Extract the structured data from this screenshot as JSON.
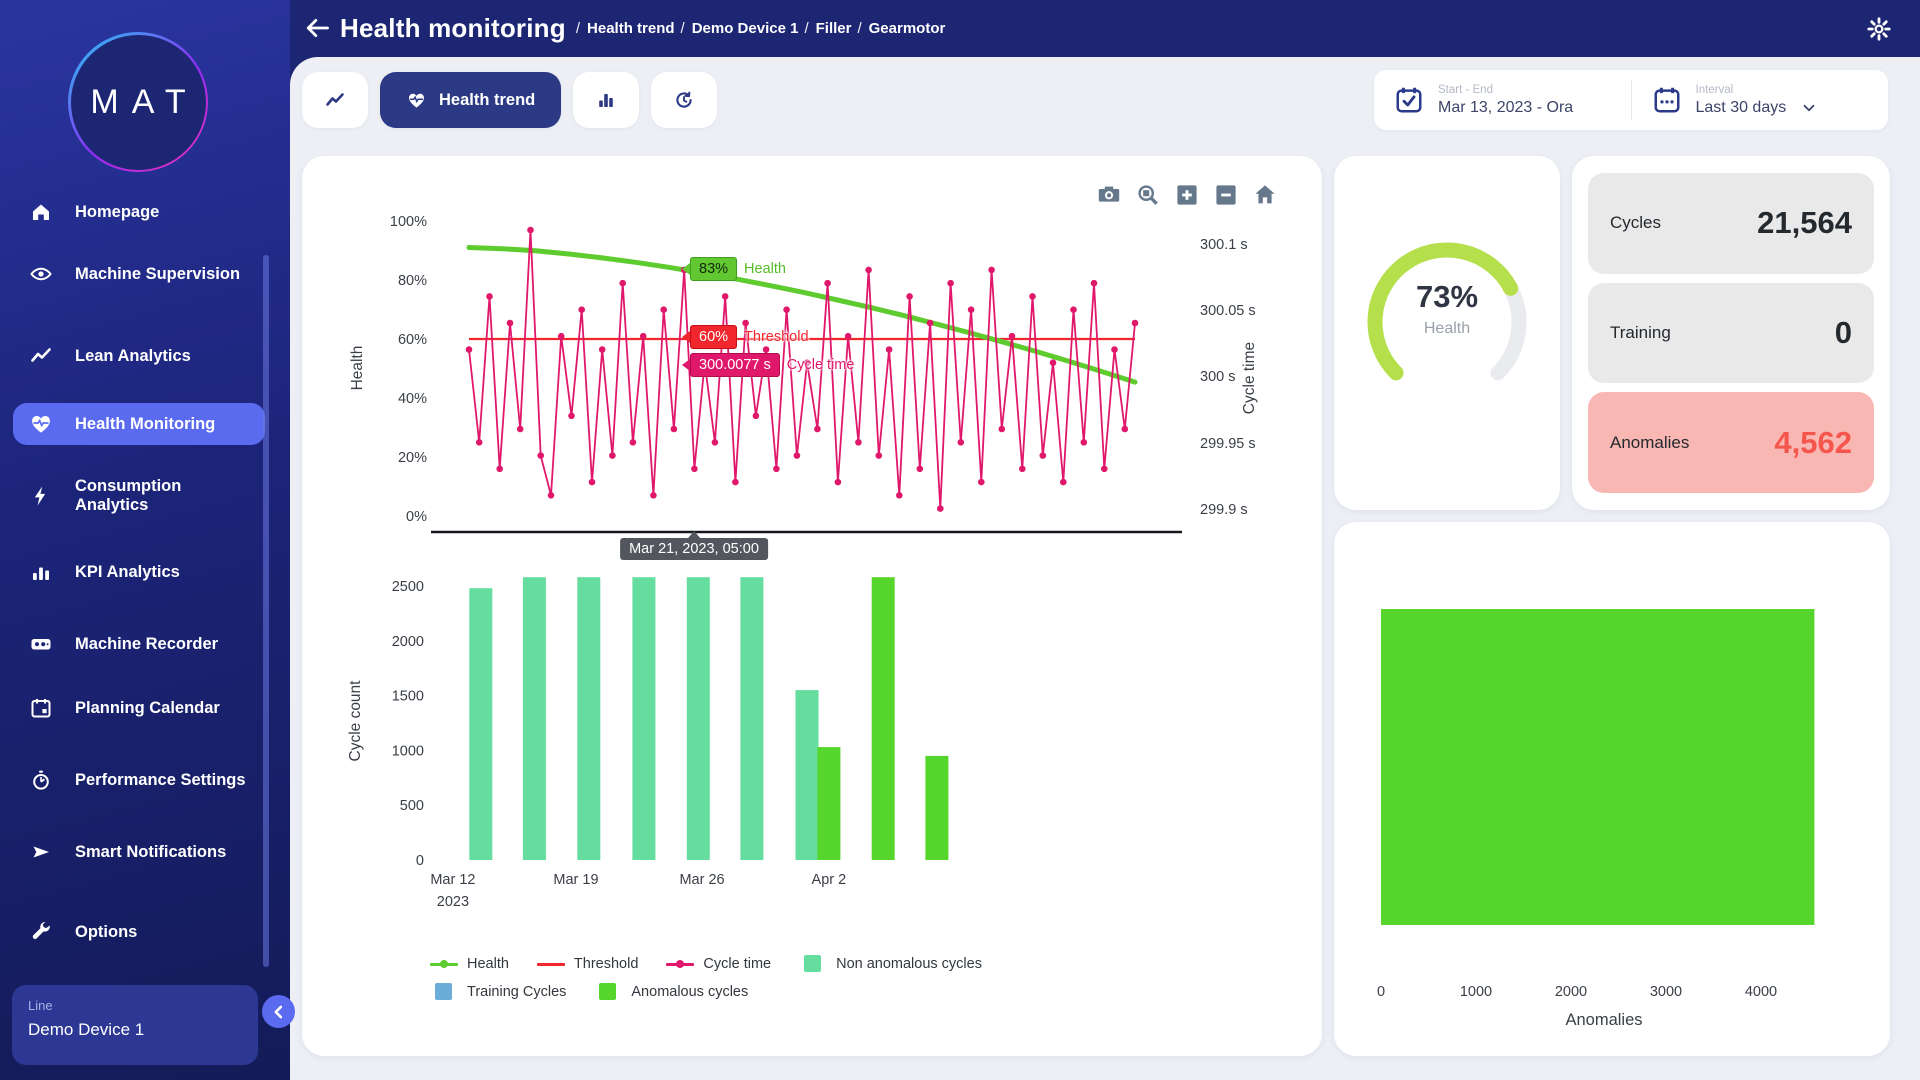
{
  "header": {
    "title": "Health monitoring",
    "breadcrumbs": [
      "Health trend",
      "Demo Device 1",
      "Filler",
      "Gearmotor"
    ]
  },
  "sidebar": {
    "logo": "MAT",
    "items": [
      {
        "label": "Homepage",
        "icon": "home-icon",
        "active": false
      },
      {
        "label": "Machine Supervision",
        "icon": "eye-icon",
        "active": false
      },
      {
        "label": "Lean Analytics",
        "icon": "trend-icon",
        "active": false
      },
      {
        "label": "Health Monitoring",
        "icon": "heart-icon",
        "active": true
      },
      {
        "label": "Consumption Analytics",
        "icon": "bolt-icon",
        "active": false
      },
      {
        "label": "KPI Analytics",
        "icon": "bar-chart-icon",
        "active": false
      },
      {
        "label": "Machine Recorder",
        "icon": "recorder-icon",
        "active": false
      },
      {
        "label": "Planning Calendar",
        "icon": "calendar-icon",
        "active": false
      },
      {
        "label": "Performance Settings",
        "icon": "stopwatch-icon",
        "active": false
      },
      {
        "label": "Smart Notifications",
        "icon": "send-icon",
        "active": false
      },
      {
        "label": "Options",
        "icon": "wrench-icon",
        "active": false
      }
    ],
    "device": {
      "label": "Line",
      "name": "Demo Device 1"
    }
  },
  "toolbar": {
    "tabs": {
      "active_label": "Health trend"
    },
    "date_range": {
      "label": "Start - End",
      "value": "Mar 13, 2023 - Ora"
    },
    "interval": {
      "label": "Interval",
      "value": "Last 30 days"
    },
    "modebar_icons": [
      "camera",
      "zoom-box",
      "zoom-in",
      "zoom-out",
      "home"
    ]
  },
  "kpis": {
    "gauge": {
      "value": 73,
      "display": "73%",
      "label": "Health"
    },
    "stats": [
      {
        "label": "Cycles",
        "value": "21,564",
        "state": "normal"
      },
      {
        "label": "Training",
        "value": "0",
        "state": "normal"
      },
      {
        "label": "Anomalies",
        "value": "4,562",
        "state": "alert"
      }
    ]
  },
  "colors": {
    "health": "#5ecb2e",
    "threshold": "#f2262d",
    "cycle_time": "#e0186b",
    "non_anomalous": "#64dd9e",
    "anomalous": "#56d62c",
    "training": "#6bacd9",
    "gauge": "#b5df4b",
    "gauge_track": "#e9ebee",
    "accent": "#5b6bf0",
    "navy": "#2c3a85",
    "axis_text": "#3a3f47"
  },
  "chart_data": [
    {
      "id": "health-trend",
      "type": "line",
      "axes": {
        "left": {
          "title": "Health",
          "ticks": [
            "100%",
            "80%",
            "60%",
            "40%",
            "20%",
            "0%"
          ],
          "range": [
            0,
            100
          ]
        },
        "right": {
          "title": "Cycle time",
          "ticks": [
            "300.1 s",
            "300.05 s",
            "300 s",
            "299.95 s",
            "299.9 s"
          ],
          "range": [
            299.9,
            300.1
          ]
        }
      },
      "series": [
        {
          "name": "Health",
          "axis": "left",
          "color_key": "health",
          "points": [
            [
              0,
              91
            ],
            [
              0.05,
              90.6
            ],
            [
              0.1,
              89.9
            ],
            [
              0.15,
              88.8
            ],
            [
              0.2,
              87.5
            ],
            [
              0.25,
              86.0
            ],
            [
              0.3,
              84.3
            ],
            [
              0.35,
              82.4
            ],
            [
              0.4,
              80.4
            ],
            [
              0.45,
              78.2
            ],
            [
              0.5,
              75.9
            ],
            [
              0.55,
              73.4
            ],
            [
              0.6,
              70.8
            ],
            [
              0.65,
              68.1
            ],
            [
              0.7,
              65.2
            ],
            [
              0.75,
              62.2
            ],
            [
              0.8,
              59.1
            ],
            [
              0.85,
              55.9
            ],
            [
              0.9,
              52.5
            ],
            [
              0.95,
              49.0
            ],
            [
              1,
              45.4
            ]
          ]
        },
        {
          "name": "Threshold",
          "axis": "left",
          "color_key": "threshold",
          "value": 60
        },
        {
          "name": "Cycle time",
          "axis": "right",
          "color_key": "cycle_time",
          "values": [
            300.02,
            299.95,
            300.06,
            299.93,
            300.04,
            299.96,
            300.11,
            299.94,
            299.91,
            300.03,
            299.97,
            300.05,
            299.92,
            300.02,
            299.94,
            300.07,
            299.95,
            300.03,
            299.91,
            300.05,
            299.96,
            300.08,
            299.93,
            300.01,
            299.95,
            300.06,
            299.92,
            300.04,
            299.97,
            300.02,
            299.93,
            300.05,
            299.94,
            300.01,
            299.96,
            300.07,
            299.92,
            300.03,
            299.95,
            300.08,
            299.94,
            300.02,
            299.91,
            300.06,
            299.93,
            300.04,
            299.9,
            300.07,
            299.95,
            300.05,
            299.92,
            300.08,
            299.96,
            300.03,
            299.93,
            300.06,
            299.94,
            300.01,
            299.92,
            300.05,
            299.95,
            300.07,
            299.93,
            300.02,
            299.96,
            300.04
          ]
        }
      ],
      "hover": {
        "x": "Mar 21, 2023, 05:00",
        "health": "83%",
        "threshold": "60%",
        "cycle_time": "300.0077 s",
        "hover_fraction": 0.338
      }
    },
    {
      "id": "cycle-count",
      "type": "bar",
      "ylabel": "Cycle count",
      "ylim": [
        0,
        2600
      ],
      "yticks": [
        0,
        500,
        1000,
        1500,
        2000,
        2500
      ],
      "xticks": [
        {
          "label": "Mar 12",
          "sub": "2023",
          "pos": 0.029
        },
        {
          "label": "Mar 19",
          "sub": "",
          "pos": 0.192
        },
        {
          "label": "Mar 26",
          "sub": "",
          "pos": 0.359
        },
        {
          "label": "Apr 2",
          "sub": "",
          "pos": 0.527
        }
      ],
      "bars": [
        {
          "pos": 0.066,
          "value": 2480,
          "type": "non_anomalous"
        },
        {
          "pos": 0.137,
          "value": 2580,
          "type": "non_anomalous"
        },
        {
          "pos": 0.209,
          "value": 2580,
          "type": "non_anomalous"
        },
        {
          "pos": 0.282,
          "value": 2580,
          "type": "non_anomalous"
        },
        {
          "pos": 0.354,
          "value": 2580,
          "type": "non_anomalous"
        },
        {
          "pos": 0.425,
          "value": 2580,
          "type": "non_anomalous"
        },
        {
          "pos": 0.498,
          "value": 1550,
          "type": "non_anomalous"
        },
        {
          "pos": 0.527,
          "value": 1030,
          "type": "anomalous"
        },
        {
          "pos": 0.599,
          "value": 2580,
          "type": "anomalous"
        },
        {
          "pos": 0.67,
          "value": 950,
          "type": "anomalous"
        }
      ],
      "legend": [
        {
          "label": "Health",
          "marker": "line-dot",
          "color_key": "health"
        },
        {
          "label": "Threshold",
          "marker": "line",
          "color_key": "threshold"
        },
        {
          "label": "Cycle time",
          "marker": "line-dot",
          "color_key": "cycle_time"
        },
        {
          "label": "Non anomalous cycles",
          "marker": "square",
          "color_key": "non_anomalous"
        },
        {
          "label": "Training Cycles",
          "marker": "square",
          "color_key": "training"
        },
        {
          "label": "Anomalous cycles",
          "marker": "square",
          "color_key": "anomalous"
        }
      ]
    },
    {
      "id": "anomalies",
      "type": "bar",
      "orientation": "horizontal",
      "value": 4562,
      "xlim": [
        0,
        4600
      ],
      "xticks": [
        0,
        1000,
        2000,
        3000,
        4000
      ],
      "xlabel": "Anomalies",
      "color_key": "anomalous"
    }
  ]
}
